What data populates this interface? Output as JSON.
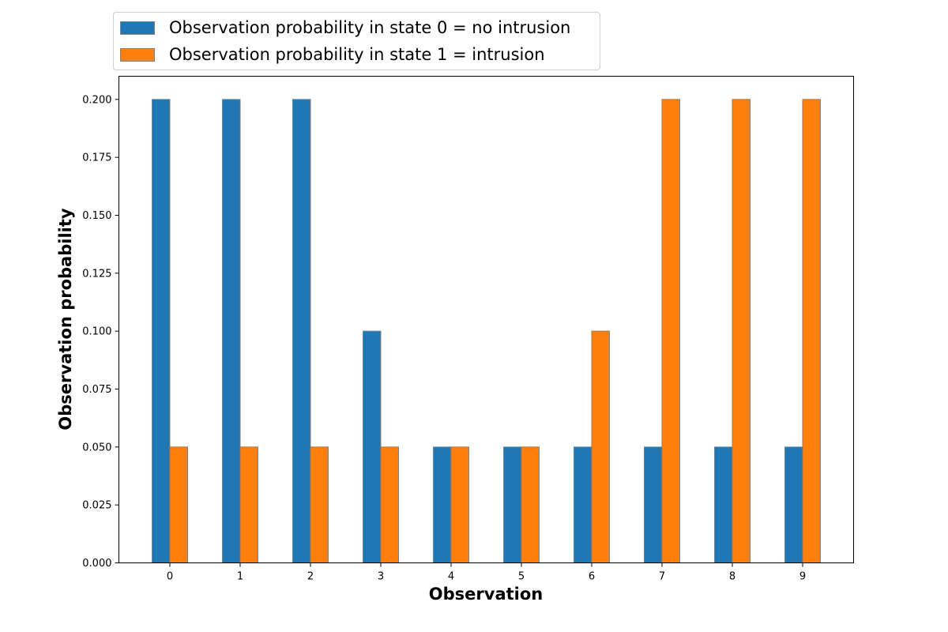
{
  "chart_data": {
    "type": "bar",
    "categories": [
      "0",
      "1",
      "2",
      "3",
      "4",
      "5",
      "6",
      "7",
      "8",
      "9"
    ],
    "series": [
      {
        "name": "Observation probability in state 0 = no intrusion",
        "color": "#1f77b4",
        "values": [
          0.2,
          0.2,
          0.2,
          0.1,
          0.05,
          0.05,
          0.05,
          0.05,
          0.05,
          0.05
        ]
      },
      {
        "name": "Observation probability in state 1 = intrusion",
        "color": "#ff7f0e",
        "values": [
          0.05,
          0.05,
          0.05,
          0.05,
          0.05,
          0.05,
          0.1,
          0.2,
          0.2,
          0.2
        ]
      }
    ],
    "xlabel": "Observation",
    "ylabel": "Observation probability",
    "ylim": [
      0,
      0.21
    ],
    "yticks": [
      "0.000",
      "0.025",
      "0.050",
      "0.075",
      "0.100",
      "0.125",
      "0.150",
      "0.175",
      "0.200"
    ],
    "bar_edge_color": "#808080",
    "grid": false,
    "legend_position": "top-left, above plot"
  }
}
